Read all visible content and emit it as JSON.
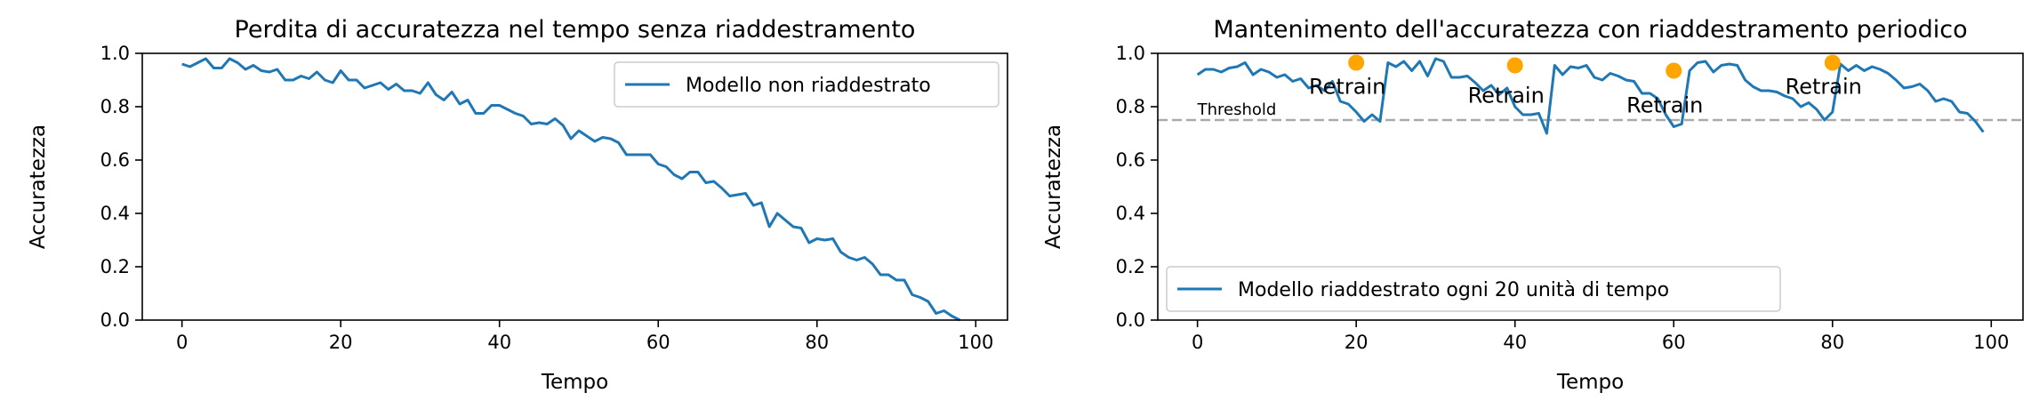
{
  "chart_data": [
    {
      "type": "line",
      "title": "Perdita di accuratezza nel tempo senza riaddestramento",
      "xlabel": "Tempo",
      "ylabel": "Accuratezza",
      "xlim": [
        -5,
        104
      ],
      "ylim": [
        0,
        1.0
      ],
      "xticks": [
        "0",
        "20",
        "40",
        "60",
        "80",
        "100"
      ],
      "yticks": [
        "0.0",
        "0.2",
        "0.4",
        "0.6",
        "0.8",
        "1.0"
      ],
      "grid": false,
      "legend_position": "upper right",
      "series": [
        {
          "name": "Modello non riaddestrato",
          "color": "#1f77b4",
          "x": [
            0,
            1,
            2,
            3,
            4,
            5,
            6,
            7,
            8,
            9,
            10,
            11,
            12,
            13,
            14,
            15,
            16,
            17,
            18,
            19,
            20,
            21,
            22,
            23,
            24,
            25,
            26,
            27,
            28,
            29,
            30,
            31,
            32,
            33,
            34,
            35,
            36,
            37,
            38,
            39,
            40,
            41,
            42,
            43,
            44,
            45,
            46,
            47,
            48,
            49,
            50,
            51,
            52,
            53,
            54,
            55,
            56,
            57,
            58,
            59,
            60,
            61,
            62,
            63,
            64,
            65,
            66,
            67,
            68,
            69,
            70,
            71,
            72,
            73,
            74,
            75,
            76,
            77,
            78,
            79,
            80,
            81,
            82,
            83,
            84,
            85,
            86,
            87,
            88,
            89,
            90,
            91,
            92,
            93,
            94,
            95,
            96,
            97,
            98
          ],
          "y": [
            0.96,
            0.95,
            0.965,
            0.98,
            0.945,
            0.945,
            0.98,
            0.965,
            0.94,
            0.955,
            0.935,
            0.93,
            0.94,
            0.9,
            0.9,
            0.915,
            0.905,
            0.93,
            0.9,
            0.89,
            0.935,
            0.9,
            0.9,
            0.87,
            0.88,
            0.89,
            0.865,
            0.885,
            0.86,
            0.86,
            0.85,
            0.89,
            0.845,
            0.825,
            0.855,
            0.81,
            0.825,
            0.775,
            0.775,
            0.805,
            0.805,
            0.79,
            0.775,
            0.765,
            0.735,
            0.74,
            0.735,
            0.755,
            0.73,
            0.68,
            0.71,
            0.69,
            0.67,
            0.685,
            0.68,
            0.665,
            0.62,
            0.62,
            0.62,
            0.62,
            0.585,
            0.575,
            0.545,
            0.53,
            0.555,
            0.555,
            0.515,
            0.52,
            0.495,
            0.465,
            0.47,
            0.475,
            0.43,
            0.44,
            0.35,
            0.4,
            0.375,
            0.35,
            0.345,
            0.29,
            0.305,
            0.3,
            0.305,
            0.255,
            0.235,
            0.225,
            0.235,
            0.21,
            0.17,
            0.17,
            0.15,
            0.15,
            0.095,
            0.085,
            0.07,
            0.025,
            0.035,
            0.015,
            0.0
          ]
        }
      ]
    },
    {
      "type": "line",
      "title": "Mantenimento dell'accuratezza con riaddestramento periodico",
      "xlabel": "Tempo",
      "ylabel": "Accuratezza",
      "xlim": [
        -5,
        104
      ],
      "ylim": [
        0,
        1.0
      ],
      "xticks": [
        "0",
        "20",
        "40",
        "60",
        "80",
        "100"
      ],
      "yticks": [
        "0.0",
        "0.2",
        "0.4",
        "0.6",
        "0.8",
        "1.0"
      ],
      "grid": false,
      "legend_position": "lower left",
      "threshold": {
        "value": 0.75,
        "label": "Threshold",
        "color": "#aaaaaa"
      },
      "annotations": [
        {
          "x": 20,
          "y": 0.965,
          "label": "Retrain",
          "color": "#ffa500"
        },
        {
          "x": 40,
          "y": 0.955,
          "label": "Retrain",
          "color": "#ffa500"
        },
        {
          "x": 60,
          "y": 0.935,
          "label": "Retrain",
          "color": "#ffa500"
        },
        {
          "x": 80,
          "y": 0.965,
          "label": "Retrain",
          "color": "#ffa500"
        }
      ],
      "series": [
        {
          "name": "Modello riaddestrato ogni 20 unità di tempo",
          "color": "#1f77b4",
          "x": [
            0,
            1,
            2,
            3,
            4,
            5,
            6,
            7,
            8,
            9,
            10,
            11,
            12,
            13,
            14,
            15,
            16,
            17,
            18,
            19,
            20,
            21,
            22,
            23,
            24,
            25,
            26,
            27,
            28,
            29,
            30,
            31,
            32,
            33,
            34,
            35,
            36,
            37,
            38,
            39,
            40,
            41,
            42,
            43,
            44,
            45,
            46,
            47,
            48,
            49,
            50,
            51,
            52,
            53,
            54,
            55,
            56,
            57,
            58,
            59,
            60,
            61,
            62,
            63,
            64,
            65,
            66,
            67,
            68,
            69,
            70,
            71,
            72,
            73,
            74,
            75,
            76,
            77,
            78,
            79,
            80,
            81,
            82,
            83,
            84,
            85,
            86,
            87,
            88,
            89,
            90,
            91,
            92,
            93,
            94,
            95,
            96,
            97,
            98,
            99
          ],
          "y": [
            0.92,
            0.94,
            0.94,
            0.93,
            0.945,
            0.95,
            0.965,
            0.92,
            0.94,
            0.93,
            0.91,
            0.92,
            0.895,
            0.905,
            0.87,
            0.88,
            0.86,
            0.895,
            0.82,
            0.81,
            0.78,
            0.745,
            0.77,
            0.745,
            0.965,
            0.95,
            0.97,
            0.935,
            0.97,
            0.915,
            0.98,
            0.97,
            0.91,
            0.91,
            0.915,
            0.89,
            0.86,
            0.88,
            0.845,
            0.87,
            0.8,
            0.77,
            0.77,
            0.775,
            0.7,
            0.955,
            0.92,
            0.95,
            0.945,
            0.955,
            0.91,
            0.9,
            0.925,
            0.915,
            0.9,
            0.895,
            0.85,
            0.85,
            0.83,
            0.77,
            0.725,
            0.735,
            0.935,
            0.965,
            0.97,
            0.93,
            0.955,
            0.96,
            0.955,
            0.9,
            0.875,
            0.86,
            0.86,
            0.855,
            0.84,
            0.83,
            0.8,
            0.815,
            0.79,
            0.75,
            0.78,
            0.96,
            0.935,
            0.955,
            0.935,
            0.95,
            0.94,
            0.925,
            0.9,
            0.87,
            0.875,
            0.885,
            0.86,
            0.82,
            0.83,
            0.82,
            0.78,
            0.775,
            0.745,
            0.705
          ]
        }
      ]
    }
  ]
}
